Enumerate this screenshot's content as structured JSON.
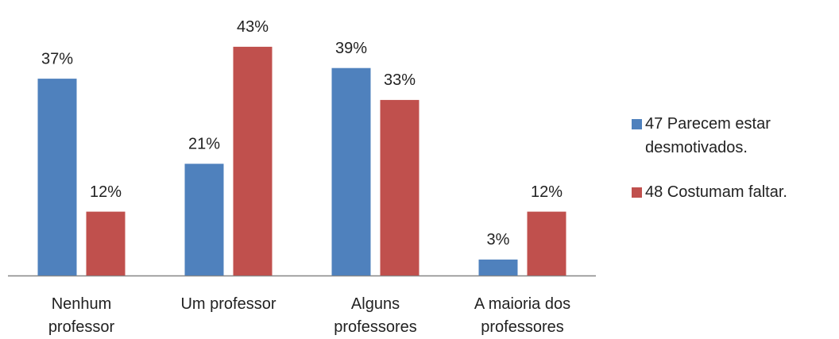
{
  "chart_data": {
    "type": "bar",
    "categories": [
      "Nenhum professor",
      "Um professor",
      "Alguns professores",
      "A maioria dos professores"
    ],
    "series": [
      {
        "name": "47 Parecem estar desmotivados.",
        "color": "#4f81bd",
        "values": [
          37,
          21,
          39,
          3
        ],
        "value_labels": [
          "37%",
          "21%",
          "39%",
          "3%"
        ]
      },
      {
        "name": "48 Costumam faltar.",
        "color": "#c0504d",
        "values": [
          12,
          43,
          33,
          12
        ],
        "value_labels": [
          "12%",
          "43%",
          "33%",
          "12%"
        ]
      }
    ],
    "ylim": [
      0,
      50
    ],
    "legend": "right"
  }
}
